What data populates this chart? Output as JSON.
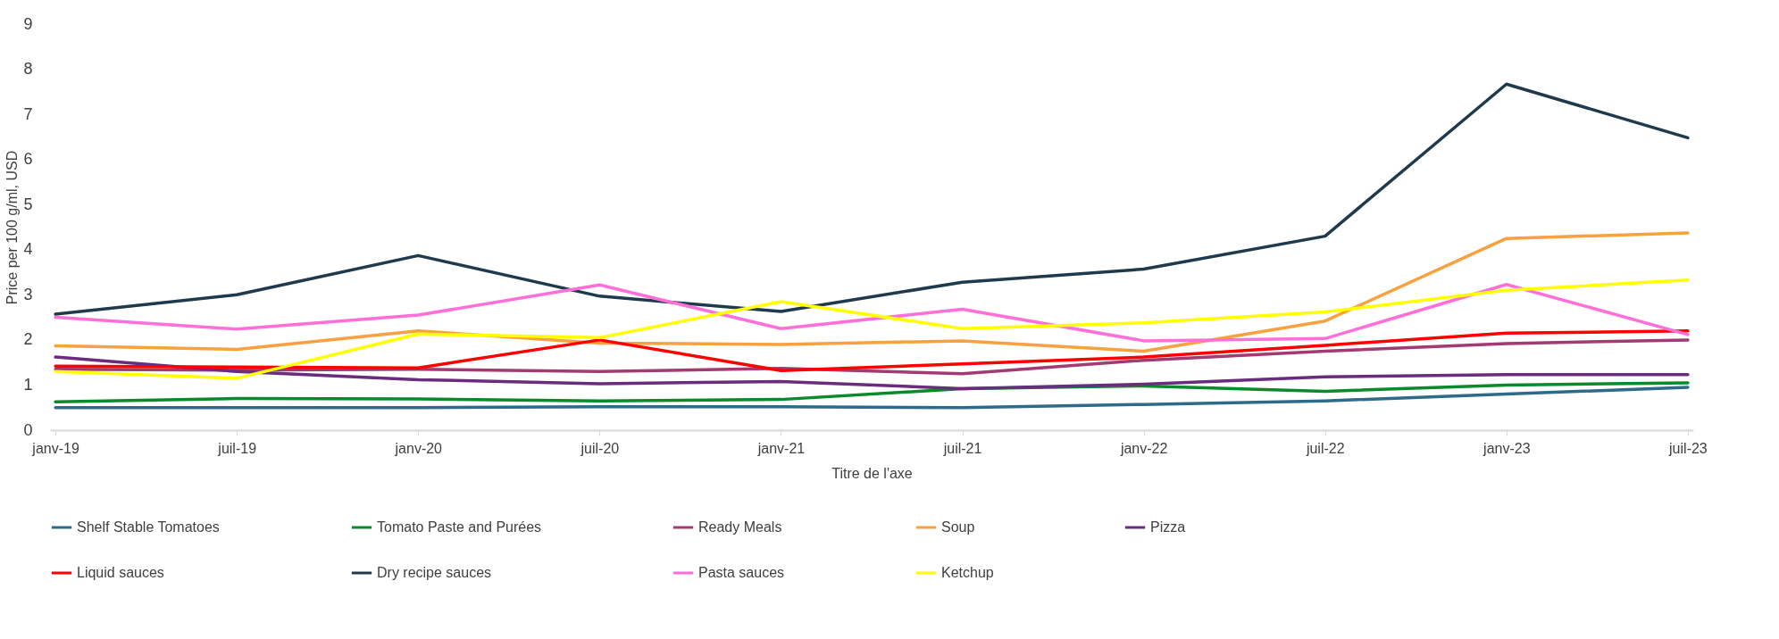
{
  "chart_data": {
    "type": "line",
    "xlabel": "Titre de l'axe",
    "ylabel": "Price per 100 g/ml, USD",
    "categories": [
      "janv-19",
      "juil-19",
      "janv-20",
      "juil-20",
      "janv-21",
      "juil-21",
      "janv-22",
      "juil-22",
      "janv-23",
      "juil-23"
    ],
    "ylim": [
      0,
      9
    ],
    "yticks": [
      0,
      1,
      2,
      3,
      4,
      5,
      6,
      7,
      8,
      9
    ],
    "grid": false,
    "legend": "bottom",
    "marker": "none",
    "line_style": "solid",
    "series": [
      {
        "name": "Shelf Stable Tomatoes",
        "color": "#2e6b8a",
        "values": [
          0.5,
          0.5,
          0.5,
          0.52,
          0.52,
          0.5,
          0.57,
          0.65,
          0.8,
          0.95
        ]
      },
      {
        "name": "Tomato Paste and Purées",
        "color": "#0a8a2a",
        "values": [
          0.63,
          0.7,
          0.69,
          0.65,
          0.68,
          0.92,
          0.98,
          0.86,
          1.0,
          1.05
        ]
      },
      {
        "name": "Ready Meals",
        "color": "#a23b72",
        "values": [
          1.35,
          1.33,
          1.35,
          1.3,
          1.37,
          1.25,
          1.55,
          1.75,
          1.92,
          2.0
        ]
      },
      {
        "name": "Soup",
        "color": "#f9a03f",
        "values": [
          1.87,
          1.79,
          2.2,
          1.93,
          1.9,
          1.98,
          1.75,
          2.42,
          4.25,
          4.37
        ]
      },
      {
        "name": "Pizza",
        "color": "#6a2c7e",
        "values": [
          1.62,
          1.3,
          1.12,
          1.03,
          1.08,
          0.92,
          1.02,
          1.18,
          1.23,
          1.23
        ]
      },
      {
        "name": "Liquid sauces",
        "color": "#ff0000",
        "values": [
          1.42,
          1.4,
          1.38,
          2.0,
          1.32,
          1.47,
          1.62,
          1.88,
          2.15,
          2.2
        ]
      },
      {
        "name": "Dry recipe sauces",
        "color": "#1e3a4c",
        "values": [
          2.57,
          3.0,
          3.87,
          2.97,
          2.63,
          3.28,
          3.57,
          4.3,
          7.67,
          6.48
        ]
      },
      {
        "name": "Pasta sauces",
        "color": "#ff6fd8",
        "values": [
          2.5,
          2.24,
          2.55,
          3.22,
          2.25,
          2.68,
          1.98,
          2.03,
          3.23,
          2.12
        ]
      },
      {
        "name": "Ketchup",
        "color": "#ffff00",
        "values": [
          1.3,
          1.15,
          2.13,
          2.05,
          2.85,
          2.25,
          2.38,
          2.62,
          3.1,
          3.33
        ]
      }
    ]
  }
}
